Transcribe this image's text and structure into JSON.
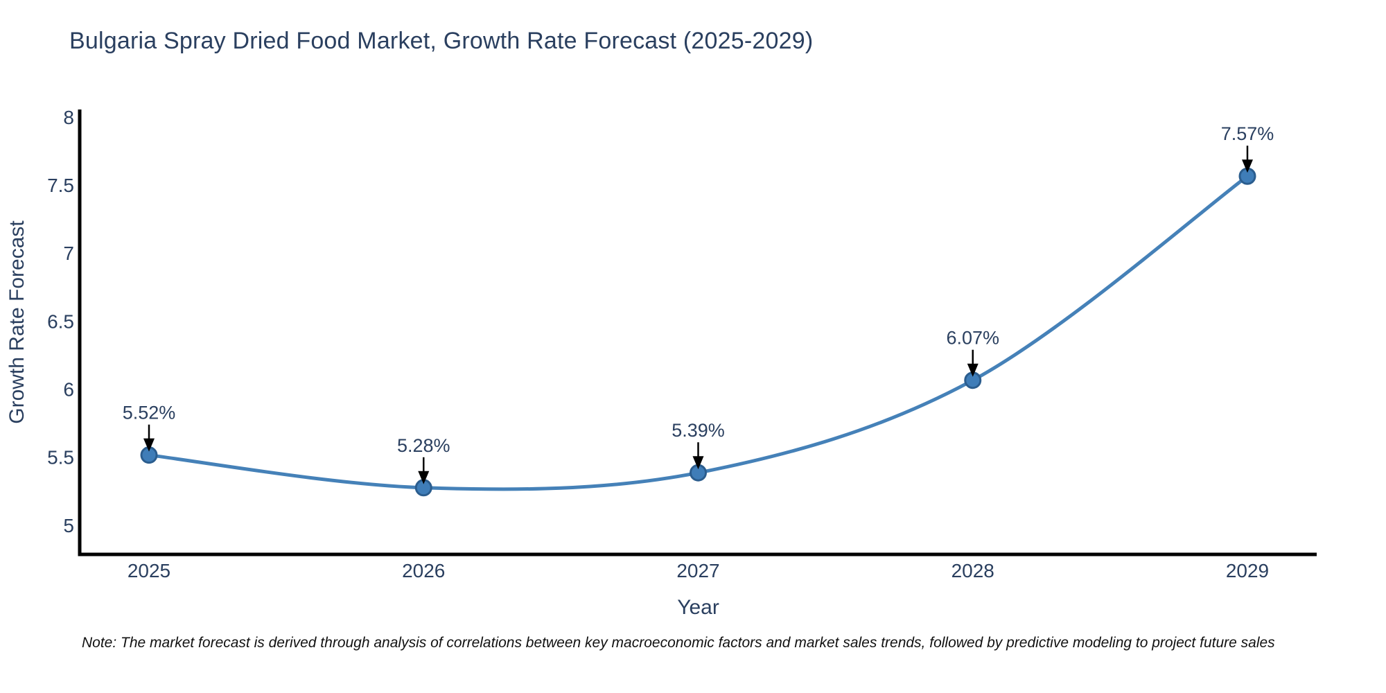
{
  "page": {
    "note": "Note: The market forecast is derived through analysis of correlations between key macroeconomic factors and market sales trends, followed by predictive modeling to project future sales"
  },
  "chart_data": {
    "type": "line",
    "title": "Bulgaria Spray Dried Food Market, Growth Rate Forecast (2025-2029)",
    "xlabel": "Year",
    "ylabel": "Growth Rate Forecast",
    "x": [
      "2025",
      "2026",
      "2027",
      "2028",
      "2029"
    ],
    "y": [
      5.52,
      5.28,
      5.39,
      6.07,
      7.57
    ],
    "point_labels": [
      "5.52%",
      "5.28%",
      "5.39%",
      "6.07%",
      "7.57%"
    ],
    "yticks": [
      5,
      5.5,
      6,
      6.5,
      7,
      7.5,
      8
    ],
    "ylim": [
      4.79,
      8.05
    ],
    "grid": false,
    "legend": false,
    "curve": "spline",
    "colors": {
      "line": "#4581b8",
      "marker_fill": "#3f7db8",
      "marker_edge": "#2b5d8e",
      "axis": "#000000",
      "text": "#2a3f5f",
      "annotation_arrow": "#000000"
    }
  }
}
